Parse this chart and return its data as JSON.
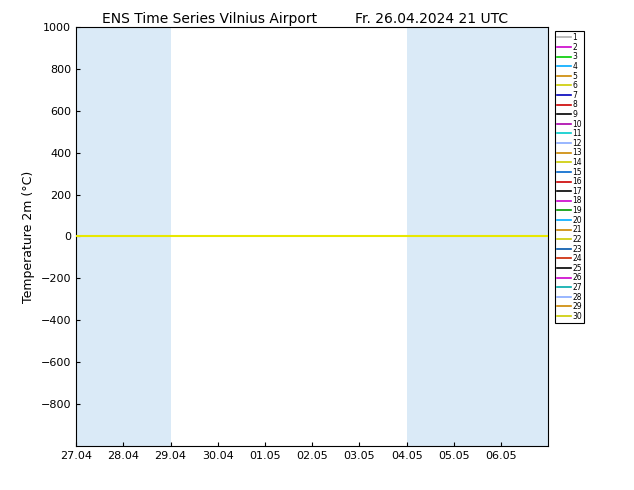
{
  "title_left": "ENS Time Series Vilnius Airport",
  "title_right": "Fr. 26.04.2024 21 UTC",
  "ylabel": "Temperature 2m (°C)",
  "ylim": [
    -1000,
    1000
  ],
  "yticks": [
    -800,
    -600,
    -400,
    -200,
    0,
    200,
    400,
    600,
    800,
    1000
  ],
  "xtick_labels": [
    "27.04",
    "28.04",
    "29.04",
    "30.04",
    "01.05",
    "02.05",
    "03.05",
    "04.05",
    "05.05",
    "06.05"
  ],
  "background_color": "#ffffff",
  "shaded_color": "#daeaf7",
  "shaded_ranges": [
    [
      0,
      1
    ],
    [
      1,
      2
    ],
    [
      7,
      8
    ],
    [
      8,
      9
    ],
    [
      9,
      10.5
    ]
  ],
  "member_colors": [
    "#b0b0b0",
    "#cc00cc",
    "#00cc00",
    "#00aaff",
    "#cc8800",
    "#cccc00",
    "#0000bb",
    "#cc0000",
    "#000000",
    "#aa00aa",
    "#00cccc",
    "#88aaff",
    "#cc8800",
    "#cccc00",
    "#0066cc",
    "#cc0000",
    "#000000",
    "#cc00cc",
    "#009900",
    "#00aaff",
    "#cc8800",
    "#cccc00",
    "#0055aa",
    "#cc2200",
    "#000000",
    "#cc00cc",
    "#00aaaa",
    "#88aaff",
    "#cc8800",
    "#cccc00"
  ],
  "num_members": 30,
  "line_value": 0,
  "line_color": "#e8e800",
  "line_width": 1.5,
  "figsize": [
    6.34,
    4.9
  ],
  "dpi": 100,
  "title_fontsize": 10,
  "ylabel_fontsize": 9,
  "tick_fontsize": 8,
  "legend_fontsize": 5.5
}
